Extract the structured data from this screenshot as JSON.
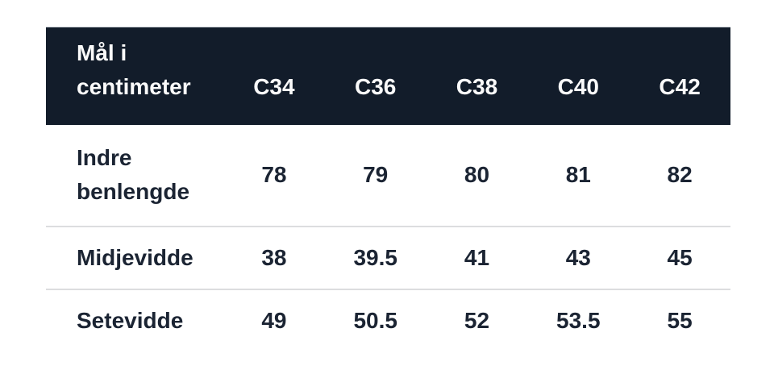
{
  "theme": {
    "header_bg": "#121c2a",
    "header_text": "#fafafa",
    "body_text": "#1b2433",
    "divider": "#dcdddf",
    "page_bg": "#ffffff"
  },
  "table": {
    "header": {
      "label": "Mål i centimeter",
      "columns": [
        "C34",
        "C36",
        "C38",
        "C40",
        "C42"
      ]
    },
    "rows": [
      {
        "label": "Indre benlengde",
        "values": [
          "78",
          "79",
          "80",
          "81",
          "82"
        ]
      },
      {
        "label": "Midjevidde",
        "values": [
          "38",
          "39.5",
          "41",
          "43",
          "45"
        ]
      },
      {
        "label": "Setevidde",
        "values": [
          "49",
          "50.5",
          "52",
          "53.5",
          "55"
        ]
      }
    ]
  },
  "chart_data": {
    "type": "table",
    "title": "Mål i centimeter",
    "columns": [
      "Mål i centimeter",
      "C34",
      "C36",
      "C38",
      "C40",
      "C42"
    ],
    "rows": [
      [
        "Indre benlengde",
        78,
        79,
        80,
        81,
        82
      ],
      [
        "Midjevidde",
        38,
        39.5,
        41,
        43,
        45
      ],
      [
        "Setevidde",
        49,
        50.5,
        52,
        53.5,
        55
      ]
    ],
    "layout_hints": {
      "header_background": "#121c2a",
      "header_text_color": "#fafafa",
      "body_text_color": "#1b2433",
      "row_dividers": true,
      "unit": "centimeter"
    }
  }
}
